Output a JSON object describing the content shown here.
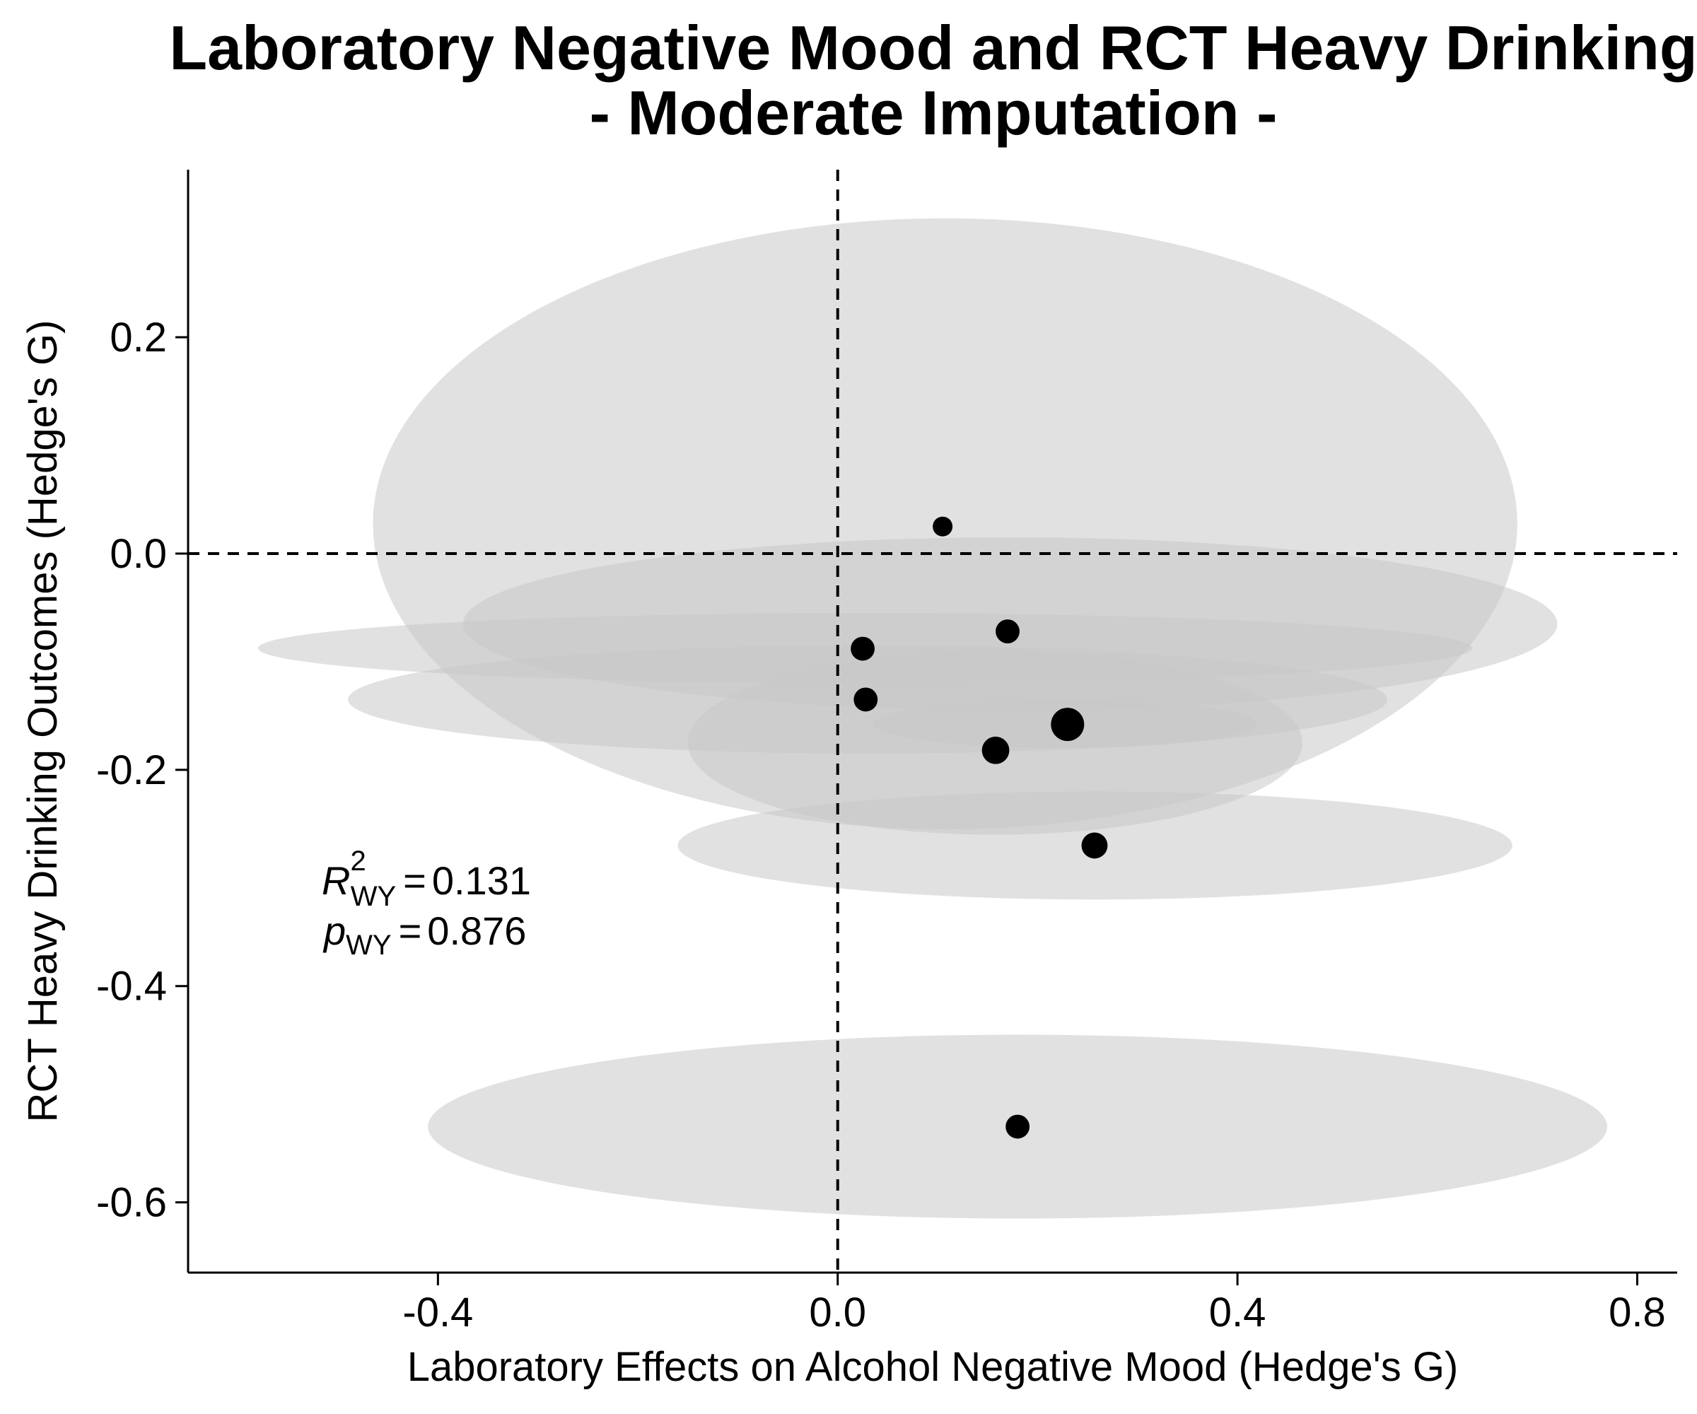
{
  "chart_data": {
    "type": "scatter",
    "title": "Laboratory Negative Mood and RCT Heavy Drinking",
    "subtitle": "- Moderate Imputation -",
    "xlabel": "Laboratory Effects on Alcohol Negative Mood (Hedge's G)",
    "ylabel": "RCT Heavy Drinking Outcomes (Hedge's G)",
    "xlim": [
      -0.65,
      0.84
    ],
    "ylim": [
      -0.665,
      0.355
    ],
    "xticks": [
      -0.4,
      0.0,
      0.4,
      0.8
    ],
    "xtick_labels": [
      "-0.4",
      "0.0",
      "0.4",
      "0.8"
    ],
    "yticks": [
      0.2,
      0.0,
      -0.2,
      -0.4,
      -0.6
    ],
    "ytick_labels": [
      "0.2",
      "0.0",
      "-0.2",
      "-0.4",
      "-0.6"
    ],
    "reference_lines": {
      "x": 0.0,
      "y": 0.0
    },
    "grid": false,
    "colors": {
      "points": "#000000",
      "ellipses": "#c8c8c8"
    },
    "ellipse_opacity": 0.55,
    "points": [
      {
        "x": 0.105,
        "y": 0.025,
        "weight": 1.0,
        "x_ci": [
          -0.465,
          0.68
        ],
        "y_ci": [
          -0.255,
          0.31
        ]
      },
      {
        "x": 0.17,
        "y": -0.072,
        "weight": 1.5,
        "x_ci": [
          -0.375,
          0.72
        ],
        "y_ci": [
          -0.145,
          0.015
        ]
      },
      {
        "x": 0.025,
        "y": -0.088,
        "weight": 1.5,
        "x_ci": [
          -0.58,
          0.635
        ],
        "y_ci": [
          -0.12,
          -0.055
        ]
      },
      {
        "x": 0.028,
        "y": -0.135,
        "weight": 1.5,
        "x_ci": [
          -0.49,
          0.55
        ],
        "y_ci": [
          -0.185,
          -0.085
        ]
      },
      {
        "x": 0.23,
        "y": -0.158,
        "weight": 3.0,
        "x_ci": [
          0.035,
          0.42
        ],
        "y_ci": [
          -0.18,
          -0.135
        ]
      },
      {
        "x": 0.158,
        "y": -0.182,
        "weight": 2.0,
        "x_ci": [
          -0.15,
          0.465
        ],
        "y_ci": [
          -0.26,
          -0.09
        ]
      },
      {
        "x": 0.257,
        "y": -0.27,
        "weight": 1.8,
        "x_ci": [
          -0.16,
          0.675
        ],
        "y_ci": [
          -0.32,
          -0.22
        ]
      },
      {
        "x": 0.18,
        "y": -0.53,
        "weight": 1.5,
        "x_ci": [
          -0.41,
          0.77
        ],
        "y_ci": [
          -0.615,
          -0.445
        ]
      }
    ],
    "annotation": {
      "r_symbol": "R",
      "r_superscript": "2",
      "r_subscript": "WY",
      "r_value": "0.131",
      "p_symbol": "p",
      "p_subscript": "WY",
      "p_value": "0.876",
      "equals": "="
    }
  }
}
